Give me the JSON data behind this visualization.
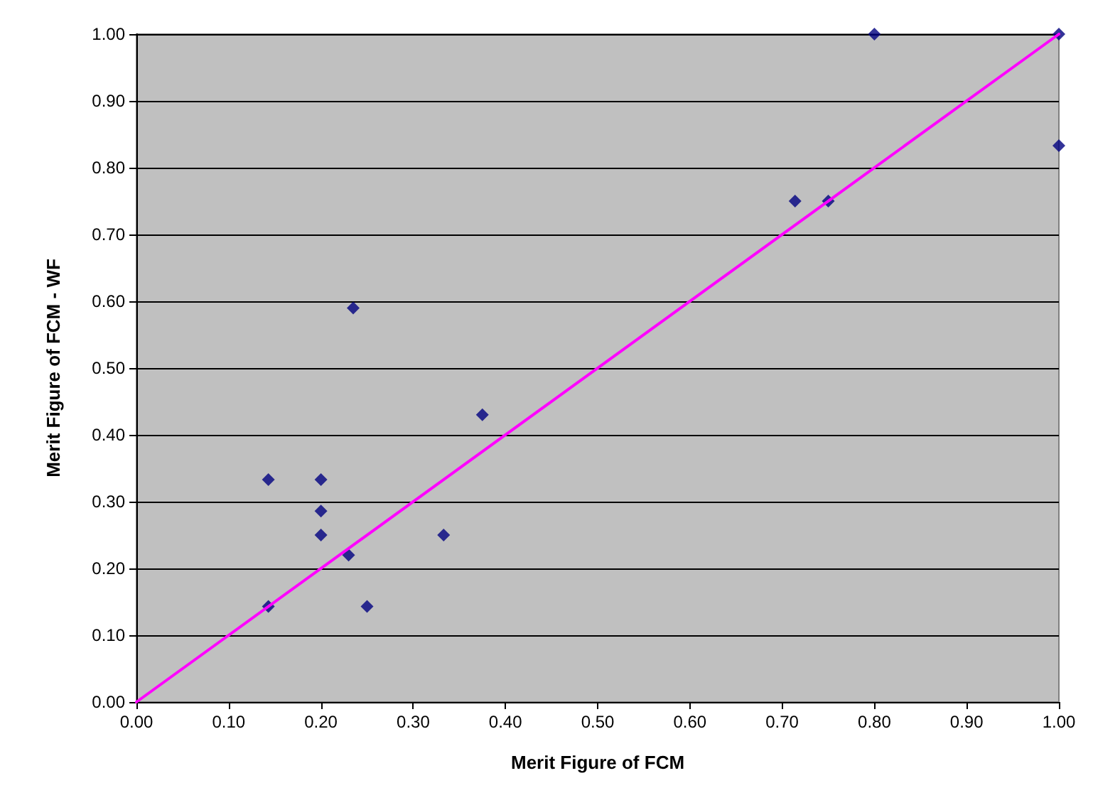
{
  "chart_data": {
    "type": "scatter",
    "xlabel": "Merit Figure of FCM",
    "ylabel": "Merit Figure of FCM - WF",
    "series": [
      {
        "color": "#000080",
        "marker": "diamond",
        "x": [
          0.143,
          0.143,
          0.2,
          0.2,
          0.2,
          0.23,
          0.235,
          0.25,
          0.333,
          0.375,
          0.714,
          0.75,
          0.8,
          1.0,
          1.0
        ],
        "values": [
          0.333,
          0.143,
          0.333,
          0.286,
          0.25,
          0.22,
          0.59,
          0.143,
          0.25,
          0.43,
          0.75,
          0.75,
          1.0,
          1.0,
          0.833
        ]
      },
      {
        "type": "line",
        "color": "#ff00ff",
        "marker": "none",
        "x": [
          0,
          1
        ],
        "values": [
          0,
          1
        ]
      }
    ],
    "xlim": [
      0,
      1
    ],
    "ylim": [
      0,
      1
    ],
    "xticks": [
      {
        "value": 0,
        "label": "0.00"
      },
      {
        "value": 0.1,
        "label": "0.10"
      },
      {
        "value": 0.2,
        "label": "0.20"
      },
      {
        "value": 0.3,
        "label": "0.30"
      },
      {
        "value": 0.4,
        "label": "0.40"
      },
      {
        "value": 0.5,
        "label": "0.50"
      },
      {
        "value": 0.6,
        "label": "0.60"
      },
      {
        "value": 0.7,
        "label": "0.70"
      },
      {
        "value": 0.8,
        "label": "0.80"
      },
      {
        "value": 0.9,
        "label": "0.90"
      },
      {
        "value": 1,
        "label": "1.00"
      }
    ],
    "yticks": [
      {
        "value": 0,
        "label": "0.00"
      },
      {
        "value": 0.1,
        "label": "0.10"
      },
      {
        "value": 0.2,
        "label": "0.20"
      },
      {
        "value": 0.3,
        "label": "0.30"
      },
      {
        "value": 0.4,
        "label": "0.40"
      },
      {
        "value": 0.5,
        "label": "0.50"
      },
      {
        "value": 0.6,
        "label": "0.60"
      },
      {
        "value": 0.7,
        "label": "0.70"
      },
      {
        "value": 0.8,
        "label": "0.80"
      },
      {
        "value": 0.9,
        "label": "0.90"
      },
      {
        "value": 1,
        "label": "1.00"
      }
    ],
    "grid": "y"
  }
}
